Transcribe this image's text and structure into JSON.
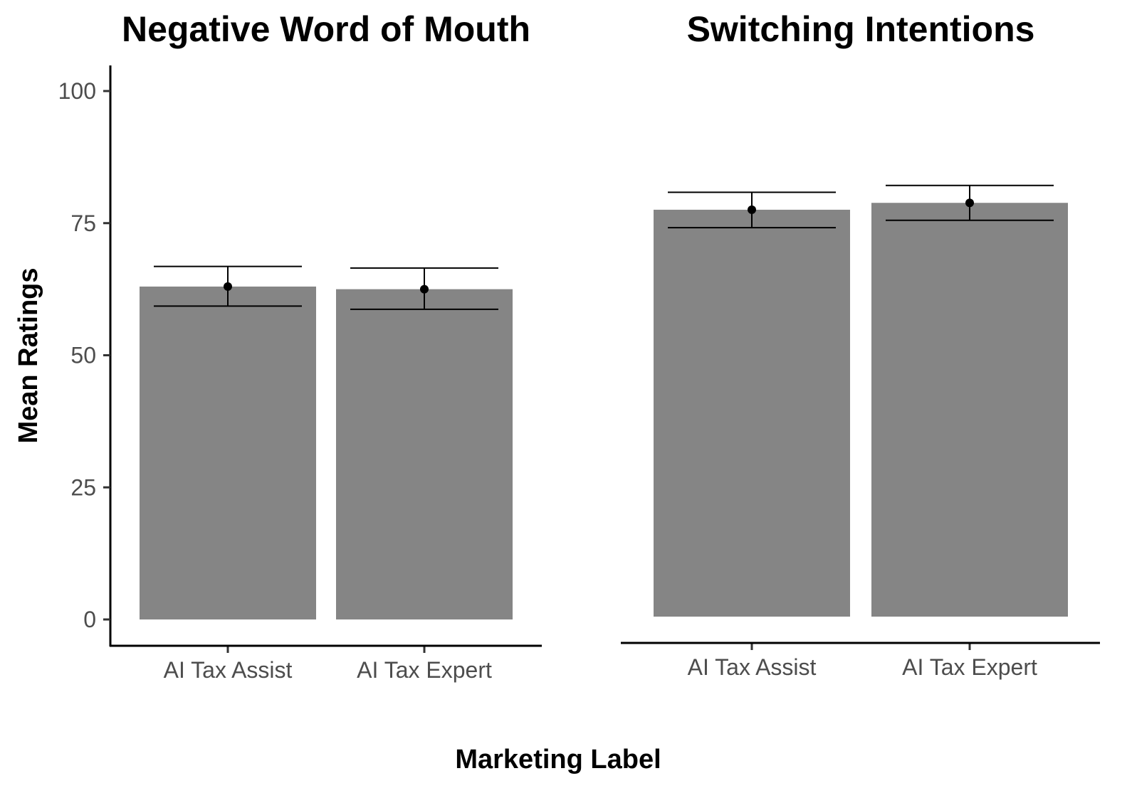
{
  "chart_data": [
    {
      "type": "bar",
      "title": "Negative Word of Mouth",
      "xlabel": "Marketing Label",
      "ylabel": "Mean Ratings",
      "categories": [
        "AI Tax Assist",
        "AI Tax Expert"
      ],
      "values": [
        63.0,
        62.5
      ],
      "error_lower": [
        59.3,
        58.7
      ],
      "error_upper": [
        66.8,
        66.5
      ],
      "ylim": [
        0,
        100
      ],
      "yticks": [
        0,
        25,
        50,
        75,
        100
      ],
      "grid": false,
      "bar_color": "#858585",
      "error_color": "#000000"
    },
    {
      "type": "bar",
      "title": "Switching Intentions",
      "xlabel": "Marketing Label",
      "ylabel": "Mean Ratings",
      "categories": [
        "AI Tax Assist",
        "AI Tax Expert"
      ],
      "values": [
        77.0,
        78.3
      ],
      "error_lower": [
        73.6,
        75.0
      ],
      "error_upper": [
        80.3,
        81.6
      ],
      "ylim": [
        0,
        100
      ],
      "yticks": [
        0,
        25,
        50,
        75,
        100
      ],
      "grid": false,
      "bar_color": "#858585",
      "error_color": "#000000"
    }
  ],
  "figure": {
    "shared_xlabel": "Marketing Label",
    "shared_ylabel": "Mean Ratings"
  }
}
